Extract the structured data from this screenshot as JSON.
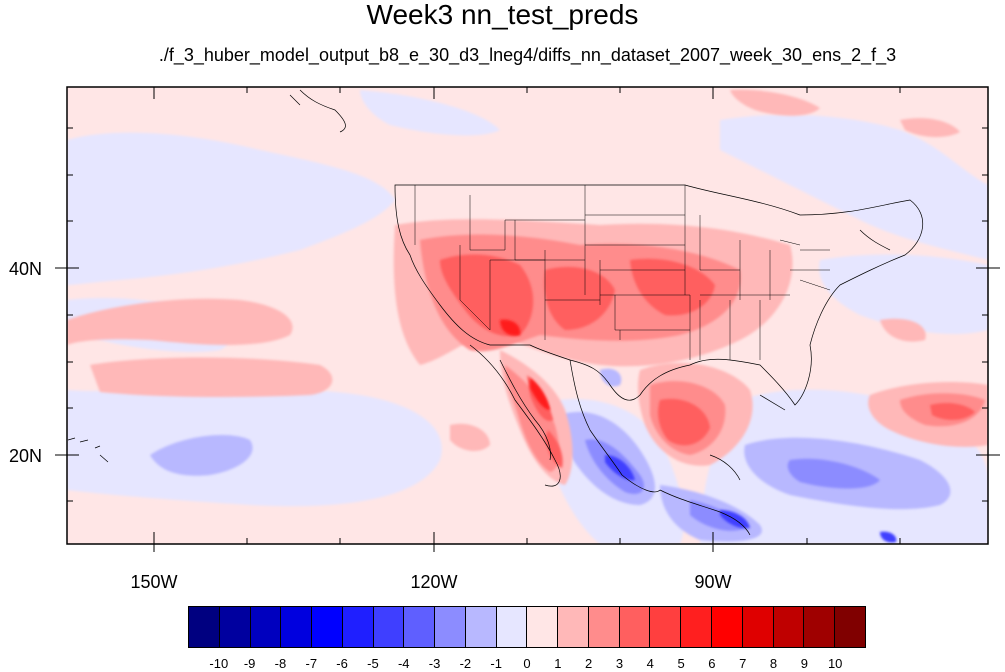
{
  "title": "Week3 nn_test_preds",
  "subtitle": "./f_3_huber_model_output_b8_e_30_d3_lneg4/diffs_nn_dataset_2007_week_30_ens_2_f_3",
  "lat_labels": [
    "40N",
    "20N"
  ],
  "lon_labels": [
    "150W",
    "120W",
    "90W"
  ],
  "colorbar": {
    "labels": [
      "-10",
      "-9",
      "-8",
      "-7",
      "-6",
      "-5",
      "-4",
      "-3",
      "-2",
      "-1",
      "0",
      "1",
      "2",
      "3",
      "4",
      "5",
      "6",
      "7",
      "8",
      "9",
      "10"
    ],
    "colors": [
      "#000080",
      "#00009f",
      "#0000bf",
      "#0000df",
      "#0000ff",
      "#1f1fff",
      "#3f3fff",
      "#5f5fff",
      "#8c8cff",
      "#b8b8ff",
      "#e6e6ff",
      "#ffe6e6",
      "#ffb8b8",
      "#ff8c8c",
      "#ff5f5f",
      "#ff3f3f",
      "#ff1f1f",
      "#ff0000",
      "#df0000",
      "#bf0000",
      "#9f0000",
      "#800000"
    ]
  },
  "colors": {
    "background_field": "#ffe6e6",
    "frame": "#000000"
  }
}
